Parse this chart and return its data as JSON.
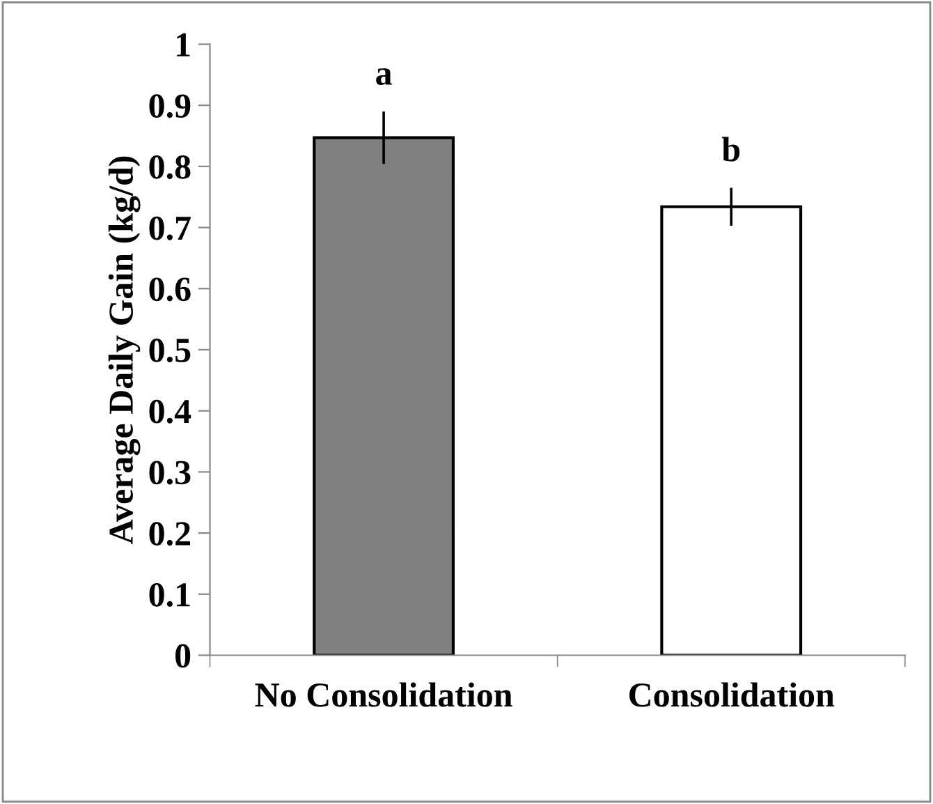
{
  "chart_data": {
    "type": "bar",
    "ylabel": "Average Daily Gain (kg/d)",
    "categories": [
      "No Consolidation",
      "Consolidation"
    ],
    "values": [
      0.847,
      0.734
    ],
    "errors": [
      0.043,
      0.031
    ],
    "colors": [
      "#808080",
      "#ffffff"
    ],
    "ylim": [
      0,
      1
    ],
    "yticks": [
      0,
      0.1,
      0.2,
      0.3,
      0.4,
      0.5,
      0.6,
      0.7,
      0.8,
      0.9,
      1
    ],
    "grid": false,
    "legend": false,
    "annotations": [
      "a",
      "b"
    ]
  }
}
